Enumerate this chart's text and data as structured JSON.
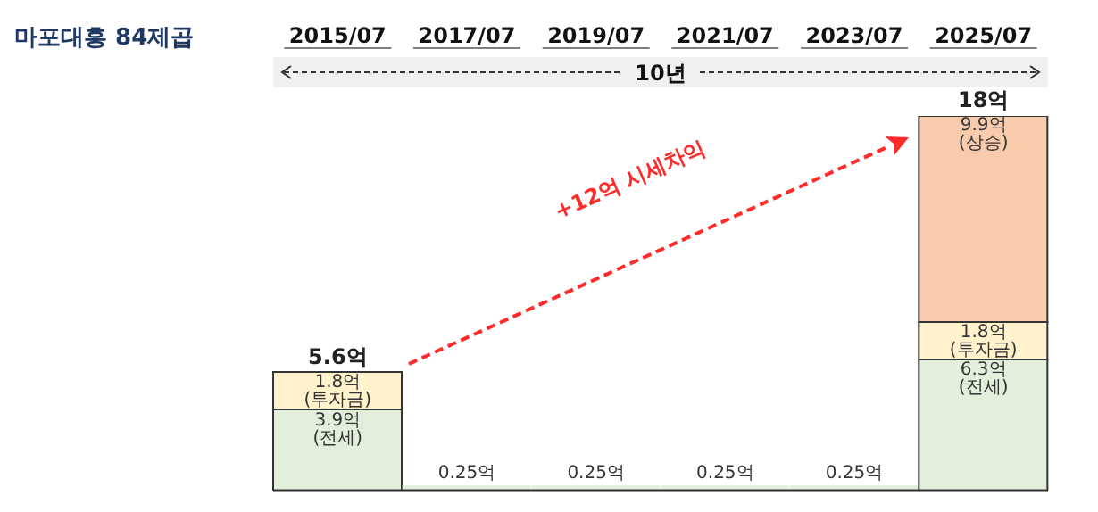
{
  "chart_data": {
    "type": "bar",
    "title": "마포대흥 84제곱",
    "categories": [
      "2015/07",
      "2017/07",
      "2019/07",
      "2021/07",
      "2023/07",
      "2025/07"
    ],
    "stacked": true,
    "series": [
      {
        "color": "#e2efda",
        "values": [
          3.9,
          0.25,
          0.25,
          0.25,
          0.25,
          6.3
        ],
        "value_labels": [
          "3.9억\n(전세)",
          "0.25억",
          "0.25억",
          "0.25억",
          "0.25억",
          "6.3억\n(전세)"
        ]
      },
      {
        "color": "#fff2cc",
        "values": [
          1.8,
          null,
          null,
          null,
          null,
          1.8
        ],
        "value_labels": [
          "1.8억\n(투자금)",
          null,
          null,
          null,
          null,
          "1.8억\n(투자금)"
        ]
      },
      {
        "color": "#f8cbad",
        "values": [
          null,
          null,
          null,
          null,
          null,
          9.9
        ],
        "value_labels": [
          null,
          null,
          null,
          null,
          null,
          "9.9억\n(상승)"
        ]
      }
    ],
    "totals": [
      "5.6억",
      null,
      null,
      null,
      null,
      "18억"
    ],
    "annotations": [
      "+12억 시세차익",
      "10년"
    ]
  }
}
